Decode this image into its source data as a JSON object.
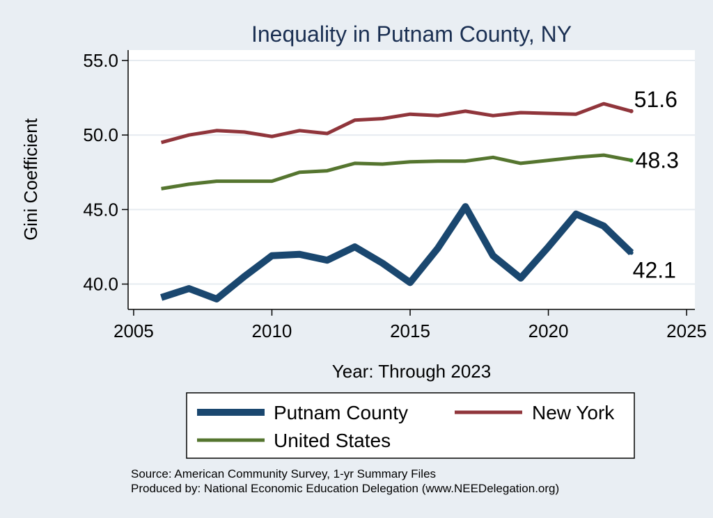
{
  "chart_data": {
    "type": "line",
    "title": "Inequality in Putnam County, NY",
    "xlabel": "Year: Through 2023",
    "ylabel": "Gini Coefficient",
    "xlim": [
      2004.8,
      2025.3
    ],
    "ylim": [
      38.3,
      55.7
    ],
    "xticks": [
      2005,
      2010,
      2015,
      2020,
      2025
    ],
    "yticks": [
      40,
      45,
      50,
      55
    ],
    "ytick_labels": [
      "40.0",
      "45.0",
      "50.0",
      "55.0"
    ],
    "grid": true,
    "legend_position": "bottom",
    "x": [
      2006,
      2007,
      2008,
      2009,
      2010,
      2011,
      2012,
      2013,
      2014,
      2015,
      2016,
      2017,
      2018,
      2019,
      2020,
      2021,
      2022,
      2023
    ],
    "series": [
      {
        "name": "Putnam County",
        "color": "#1a476f",
        "width": 10,
        "values": [
          39.1,
          39.7,
          39.0,
          40.5,
          41.9,
          42.0,
          41.6,
          42.5,
          41.4,
          40.1,
          42.4,
          45.2,
          41.9,
          40.4,
          42.5,
          44.7,
          43.9,
          42.1
        ],
        "end_label": "42.1"
      },
      {
        "name": "New York",
        "color": "#90353b",
        "width": 5,
        "values": [
          49.5,
          50.0,
          50.3,
          50.2,
          49.9,
          50.3,
          50.1,
          51.0,
          51.1,
          51.4,
          51.3,
          51.6,
          51.3,
          51.5,
          51.45,
          51.4,
          52.1,
          51.6
        ],
        "end_label": "51.6"
      },
      {
        "name": "United States",
        "color": "#55752f",
        "width": 5,
        "values": [
          46.4,
          46.7,
          46.9,
          46.9,
          46.9,
          47.5,
          47.6,
          48.1,
          48.05,
          48.2,
          48.25,
          48.25,
          48.5,
          48.1,
          48.3,
          48.5,
          48.65,
          48.3
        ],
        "end_label": "48.3"
      }
    ],
    "notes": [
      "Source: American Community Survey, 1-yr Summary Files",
      "Produced by: National Economic Education Delegation (www.NEEDelegation.org)"
    ]
  }
}
